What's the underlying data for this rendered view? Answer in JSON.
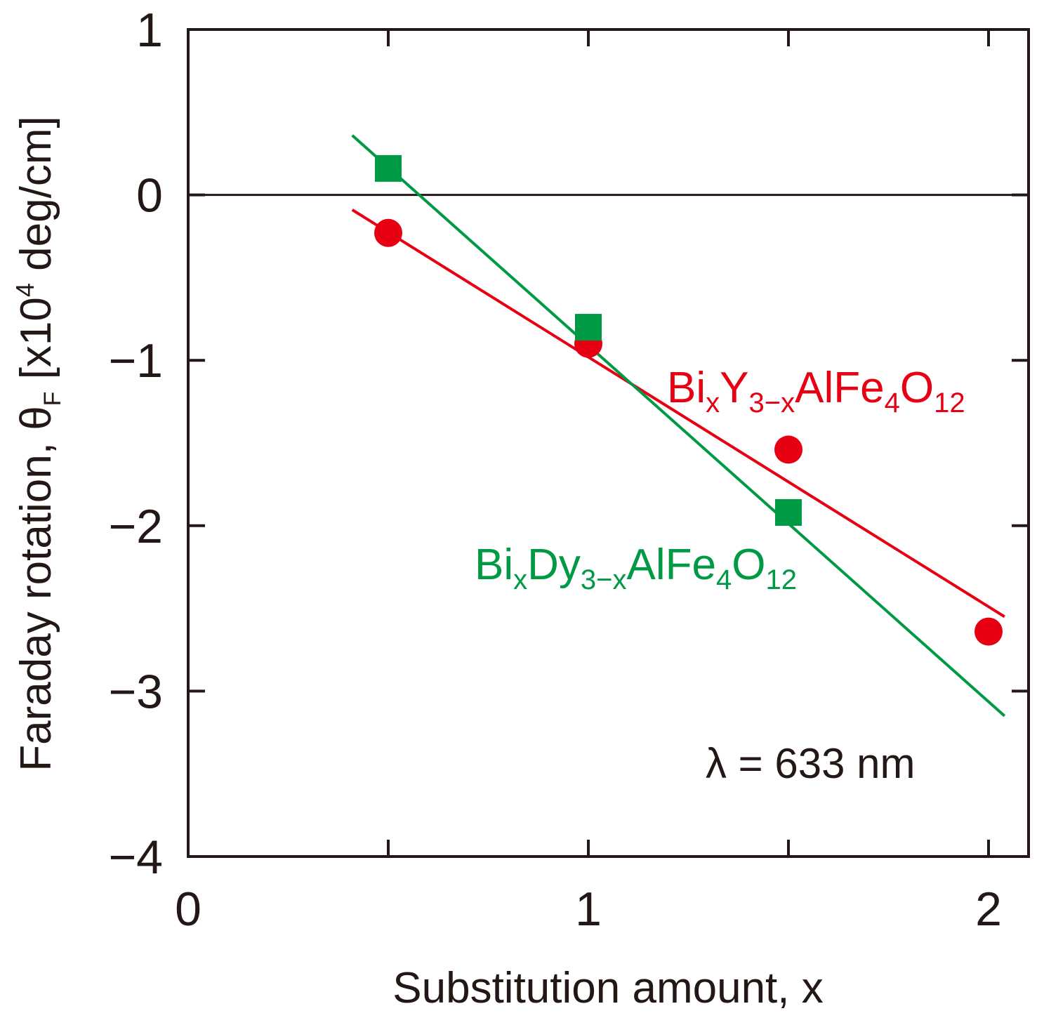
{
  "chart_data": {
    "type": "scatter",
    "xlabel": "Substitution amount, x",
    "ylabel_main": "Faraday rotation, θ",
    "ylabel_sub": "F",
    "ylabel_unit_prefix": " [x10",
    "ylabel_unit_exp": "4",
    "ylabel_unit_suffix": " deg/cm]",
    "xlim": [
      0,
      2.1
    ],
    "ylim": [
      -4,
      1
    ],
    "xticks": [
      0,
      1,
      2
    ],
    "xtick_labels": [
      "0",
      "1",
      "2"
    ],
    "yticks": [
      1,
      0,
      -1,
      -2,
      -3,
      -4
    ],
    "ytick_labels": [
      "1",
      "0",
      "−1",
      "−2",
      "−3",
      "−4"
    ],
    "minor_xticks": [
      0.5,
      1.5
    ],
    "zero_line": true,
    "annotation": "λ = 633 nm",
    "series": [
      {
        "name_parts": [
          {
            "t": "Bi",
            "s": "normal"
          },
          {
            "t": "x",
            "s": "sub"
          },
          {
            "t": "Y",
            "s": "normal"
          },
          {
            "t": "3−x",
            "s": "sub"
          },
          {
            "t": "AlFe",
            "s": "normal"
          },
          {
            "t": "4",
            "s": "sub"
          },
          {
            "t": "O",
            "s": "normal"
          },
          {
            "t": "12",
            "s": "sub"
          }
        ],
        "color": "#e60012",
        "marker": "circle",
        "x": [
          0.5,
          1.0,
          1.5,
          2.0
        ],
        "y": [
          -0.23,
          -0.9,
          -1.54,
          -2.64
        ],
        "fit": {
          "x": [
            0.41,
            2.04
          ],
          "y": [
            -0.09,
            -2.55
          ]
        }
      },
      {
        "name_parts": [
          {
            "t": "Bi",
            "s": "normal"
          },
          {
            "t": "x",
            "s": "sub"
          },
          {
            "t": "Dy",
            "s": "normal"
          },
          {
            "t": "3−x",
            "s": "sub"
          },
          {
            "t": "AlFe",
            "s": "normal"
          },
          {
            "t": "4",
            "s": "sub"
          },
          {
            "t": "O",
            "s": "normal"
          },
          {
            "t": "12",
            "s": "sub"
          }
        ],
        "color": "#009944",
        "marker": "square",
        "x": [
          0.5,
          1.0,
          1.5
        ],
        "y": [
          0.16,
          -0.8,
          -1.92
        ],
        "fit": {
          "x": [
            0.41,
            2.04
          ],
          "y": [
            0.36,
            -3.15
          ]
        }
      }
    ]
  }
}
